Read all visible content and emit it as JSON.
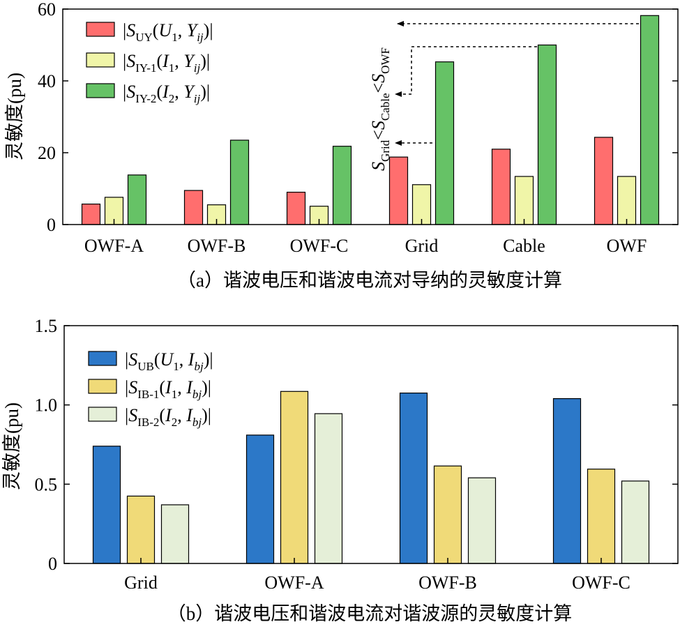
{
  "chart_data": [
    {
      "type": "bar",
      "panel": "a",
      "caption": "（a）谐波电压和谐波电流对导纳的灵敏度计算",
      "ylabel": "灵敏度(pu)",
      "ylim": [
        0,
        60
      ],
      "yticks": [
        "0",
        "20",
        "40",
        "60"
      ],
      "categories": [
        "OWF-A",
        "OWF-B",
        "OWF-C",
        "Grid",
        "Cable",
        "OWF"
      ],
      "series": [
        {
          "name": "|S_UY(U_1, Y_ij)|",
          "color": "#ff6e6e",
          "values": [
            5.7,
            9.5,
            9.0,
            18.8,
            21.0,
            24.3
          ]
        },
        {
          "name": "|S_IY-1(I_1, Y_ij)|",
          "color": "#f0f5a8",
          "values": [
            7.6,
            5.5,
            5.1,
            11.1,
            13.4,
            13.4
          ]
        },
        {
          "name": "|S_IY-2(I_2, Y_ij)|",
          "color": "#66c266",
          "values": [
            13.8,
            23.5,
            21.8,
            45.3,
            50.0,
            58.2
          ]
        }
      ],
      "legend": [
        {
          "prefix": "|",
          "S": "S",
          "sub": "UY",
          "open": "(",
          "v1": "U",
          "v1sub": "1",
          "mid": ", ",
          "v2": "Y",
          "v2sub": "ij",
          "close": ")|"
        },
        {
          "prefix": "|",
          "S": "S",
          "sub": "IY-1",
          "open": "(",
          "v1": "I",
          "v1sub": "1",
          "mid": ", ",
          "v2": "Y",
          "v2sub": "ij",
          "close": ")|"
        },
        {
          "prefix": "|",
          "S": "S",
          "sub": "IY-2",
          "open": "(",
          "v1": "I",
          "v1sub": "2",
          "mid": ", ",
          "v2": "Y",
          "v2sub": "ij",
          "close": ")|"
        }
      ],
      "annotation": {
        "parts": [
          "S",
          "Grid",
          "<",
          "S",
          "Cable",
          "<",
          "S",
          "OWF"
        ]
      },
      "grid": false,
      "legend_position": "top-left"
    },
    {
      "type": "bar",
      "panel": "b",
      "caption": "（b）谐波电压和谐波电流对谐波源的灵敏度计算",
      "ylabel": "灵敏度(pu)",
      "ylim": [
        0,
        1.5
      ],
      "yticks": [
        "0",
        "0.5",
        "1.0",
        "1.5"
      ],
      "categories": [
        "Grid",
        "OWF-A",
        "OWF-B",
        "OWF-C"
      ],
      "series": [
        {
          "name": "|S_UB(U_1, I_bj)|",
          "color": "#2c78c8",
          "values": [
            0.74,
            0.81,
            1.075,
            1.04
          ]
        },
        {
          "name": "|S_IB-1(I_1, I_bj)|",
          "color": "#f0da78",
          "values": [
            0.425,
            1.085,
            0.615,
            0.595
          ]
        },
        {
          "name": "|S_IB-2(I_2, I_bj)|",
          "color": "#e5efd8",
          "values": [
            0.37,
            0.945,
            0.54,
            0.52
          ]
        }
      ],
      "legend": [
        {
          "prefix": "|",
          "S": "S",
          "sub": "UB",
          "open": "(",
          "v1": "U",
          "v1sub": "1",
          "mid": ", ",
          "v2": "I",
          "v2sub": "bj",
          "close": ")|"
        },
        {
          "prefix": "|",
          "S": "S",
          "sub": "IB-1",
          "open": "(",
          "v1": "I",
          "v1sub": "1",
          "mid": ", ",
          "v2": "I",
          "v2sub": "bj",
          "close": ")|"
        },
        {
          "prefix": "|",
          "S": "S",
          "sub": "IB-2",
          "open": "(",
          "v1": "I",
          "v1sub": "2",
          "mid": ", ",
          "v2": "I",
          "v2sub": "bj",
          "close": ")|"
        }
      ],
      "grid": false,
      "legend_position": "top-left"
    }
  ]
}
